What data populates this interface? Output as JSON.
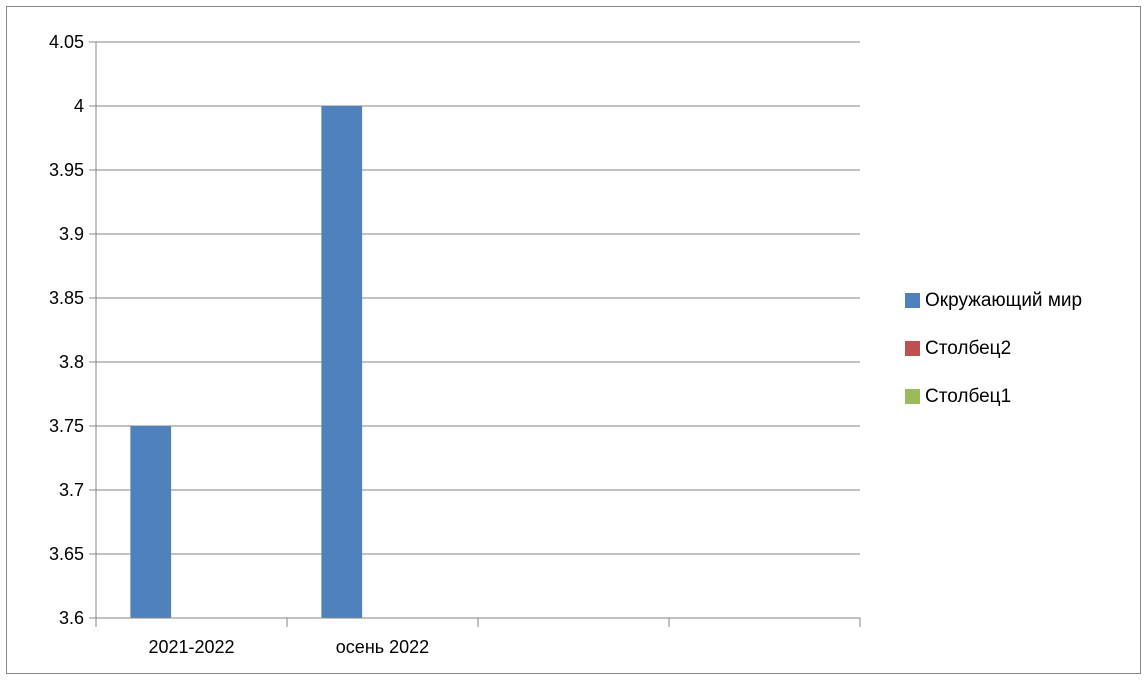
{
  "chart_data": {
    "type": "bar",
    "title": "",
    "xlabel": "",
    "ylabel": "",
    "categories": [
      "2021-2022",
      "осень 2022",
      "",
      ""
    ],
    "series": [
      {
        "name": "Окружающий мир",
        "color": "#4F81BD",
        "values": [
          3.75,
          4.0,
          null,
          null
        ]
      },
      {
        "name": "Столбец2",
        "color": "#C0504D",
        "values": [
          null,
          null,
          null,
          null
        ]
      },
      {
        "name": "Столбец1",
        "color": "#9BBB59",
        "values": [
          null,
          null,
          null,
          null
        ]
      }
    ],
    "ylim": [
      3.6,
      4.05
    ],
    "yticks": [
      "3.6",
      "3.65",
      "3.7",
      "3.75",
      "3.8",
      "3.85",
      "3.9",
      "3.95",
      "4",
      "4.05"
    ],
    "grid": true,
    "legend": "right",
    "gridline_color": "#868686"
  }
}
